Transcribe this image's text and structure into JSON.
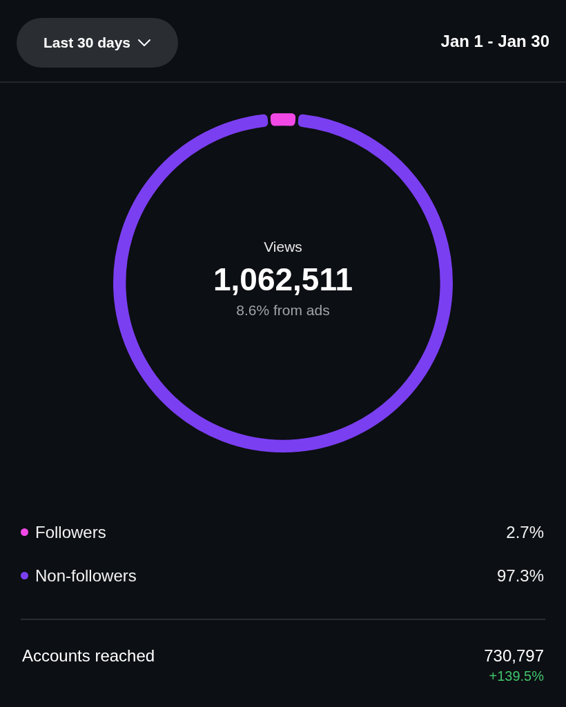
{
  "chart_data": {
    "type": "donut",
    "categories": [
      "Followers",
      "Non-followers"
    ],
    "values": [
      2.7,
      97.3
    ],
    "colors": [
      "#f249e6",
      "#7b3ff2"
    ],
    "value_labels": [
      "2.7%",
      "97.3%"
    ],
    "legend": "bottom",
    "annotations": [
      "Last 30 days",
      "Jan 1 - Jan 30",
      "Views",
      "1,062,511",
      "8.6% from ads",
      "Accounts reached",
      "730,797",
      "+139.5%"
    ]
  }
}
